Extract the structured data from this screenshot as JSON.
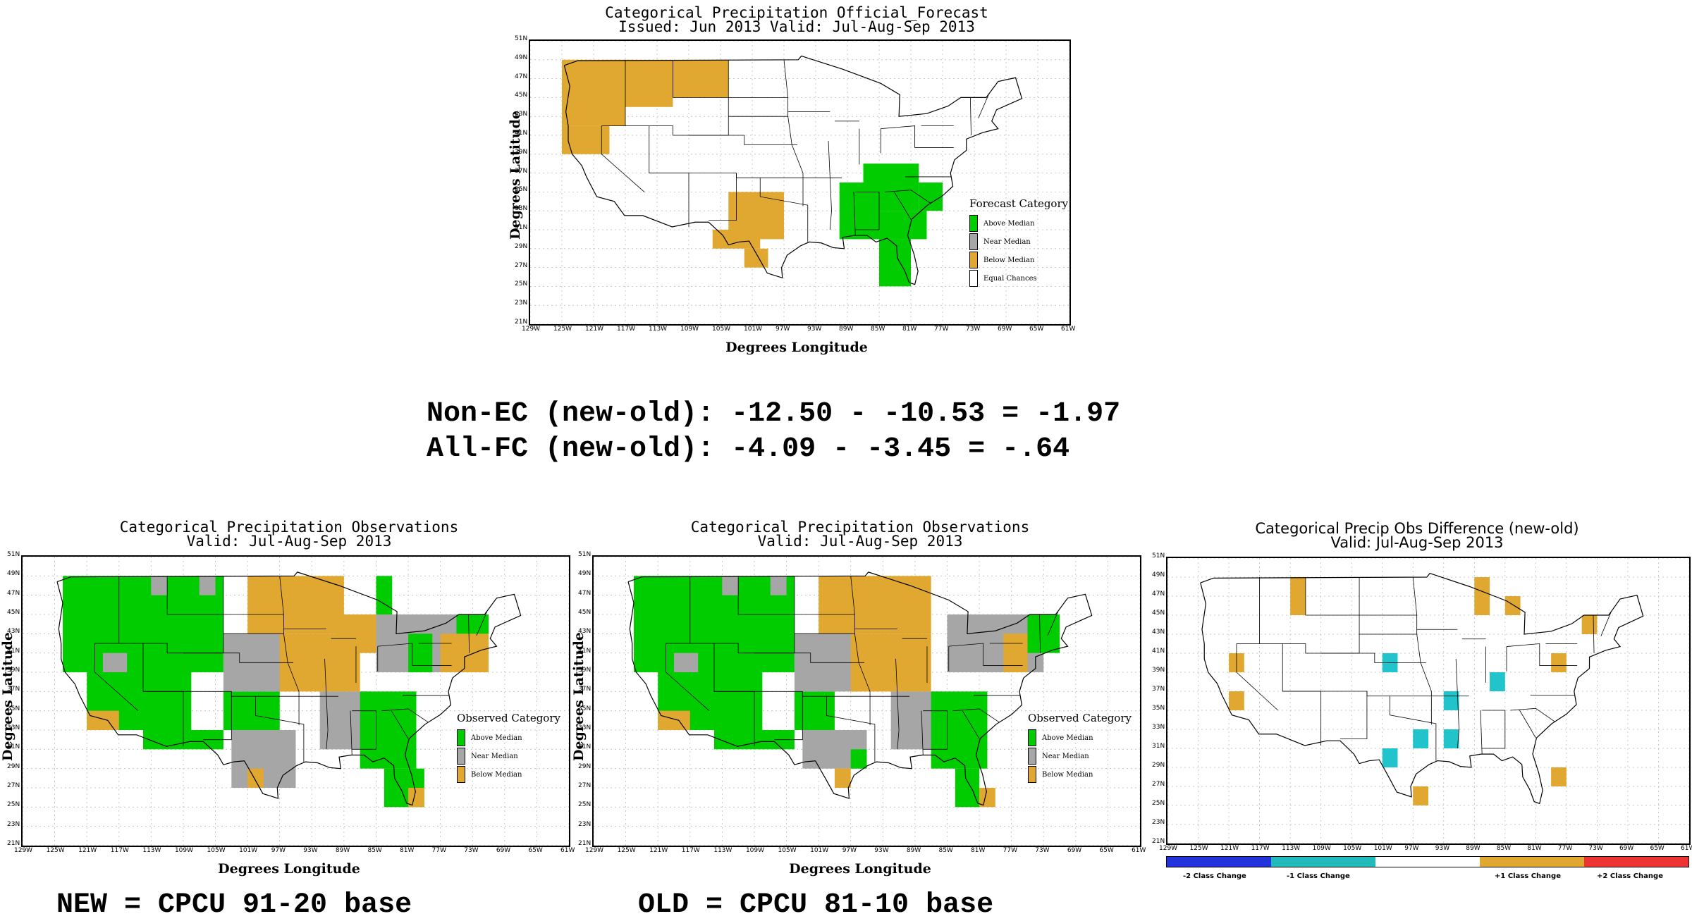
{
  "colors": {
    "above": "#00CC00",
    "near": "#A6A6A6",
    "below": "#E0A830",
    "equal": "#FFFFFF",
    "minus2": "#2233DD",
    "minus1": "#22BBBB",
    "plus1": "#E0A830",
    "plus2": "#EE3333",
    "cyan_cell": "#22C4CC"
  },
  "forecast": {
    "title_line1": "Categorical Precipitation Official_Forecast",
    "title_line2": "Issued: Jun 2013 Valid: Jul-Aug-Sep 2013",
    "ylabel": "Degrees Latitude",
    "xlabel": "Degrees Longitude",
    "legend_title": "Forecast Category",
    "legend": [
      "Above Median",
      "Near Median",
      "Below Median",
      "Equal Chances"
    ]
  },
  "stats": {
    "line1": "Non-EC (new-old): -12.50 - -10.53 = -1.97",
    "line2": "All-FC (new-old): -4.09 - -3.45 = -.64"
  },
  "obs_new": {
    "title_line1": "Categorical Precipitation Observations",
    "title_line2": "Valid: Jul-Aug-Sep 2013",
    "ylabel": "Degrees Latitude",
    "xlabel": "Degrees Longitude",
    "legend_title": "Observed Category",
    "legend": [
      "Above Median",
      "Near Median",
      "Below Median"
    ],
    "caption": "NEW = CPCU 91-20 base"
  },
  "obs_old": {
    "title_line1": "Categorical Precipitation Observations",
    "title_line2": "Valid: Jul-Aug-Sep 2013",
    "ylabel": "Degrees Latitude",
    "xlabel": "Degrees Longitude",
    "legend_title": "Observed Category",
    "legend": [
      "Above Median",
      "Near Median",
      "Below Median"
    ],
    "caption": "OLD = CPCU 81-10 base"
  },
  "diff": {
    "title_line1": "Categorical Precip Obs Difference (new-old)",
    "title_line2": "Valid: Jul-Aug-Sep 2013",
    "bar_labels": [
      "-2 Class Change",
      "-1 Class Change",
      "+1 Class Change",
      "+2 Class Change"
    ]
  },
  "axes": {
    "lat_ticks": [
      "51N",
      "49N",
      "47N",
      "45N",
      "43N",
      "41N",
      "39N",
      "37N",
      "35N",
      "33N",
      "31N",
      "29N",
      "27N",
      "25N",
      "23N",
      "21N"
    ],
    "lon_ticks": [
      "129W",
      "125W",
      "121W",
      "117W",
      "113W",
      "109W",
      "105W",
      "101W",
      "97W",
      "93W",
      "89W",
      "85W",
      "81W",
      "77W",
      "73W",
      "69W",
      "65W",
      "61W"
    ],
    "lat_range": [
      21,
      51
    ],
    "lon_range": [
      -129,
      -61
    ]
  },
  "map_grids": {
    "forecast": [
      {
        "cat": "below",
        "lon": [
          -125,
          -111
        ],
        "lat": [
          46,
          49
        ]
      },
      {
        "cat": "below",
        "lon": [
          -125,
          -117
        ],
        "lat": [
          42,
          46
        ]
      },
      {
        "cat": "below",
        "lon": [
          -125,
          -119
        ],
        "lat": [
          39,
          42
        ]
      },
      {
        "cat": "below",
        "lon": [
          -117,
          -111
        ],
        "lat": [
          44,
          46
        ]
      },
      {
        "cat": "below",
        "lon": [
          -111,
          -104
        ],
        "lat": [
          45,
          49
        ]
      },
      {
        "cat": "below",
        "lon": [
          -104,
          -97
        ],
        "lat": [
          30,
          35
        ]
      },
      {
        "cat": "below",
        "lon": [
          -106,
          -100
        ],
        "lat": [
          29,
          31
        ]
      },
      {
        "cat": "below",
        "lon": [
          -102,
          -99
        ],
        "lat": [
          27,
          29
        ]
      },
      {
        "cat": "above",
        "lon": [
          -87,
          -80
        ],
        "lat": [
          33,
          38
        ]
      },
      {
        "cat": "above",
        "lon": [
          -90,
          -85
        ],
        "lat": [
          30,
          36
        ]
      },
      {
        "cat": "above",
        "lon": [
          -85,
          -79
        ],
        "lat": [
          30,
          33
        ]
      },
      {
        "cat": "above",
        "lon": [
          -85,
          -81
        ],
        "lat": [
          25,
          30
        ]
      },
      {
        "cat": "above",
        "lon": [
          -80,
          -77
        ],
        "lat": [
          33,
          36
        ]
      }
    ],
    "obs_new": [
      {
        "cat": "above",
        "lon": [
          -124,
          -104
        ],
        "lat": [
          39,
          49
        ]
      },
      {
        "cat": "above",
        "lon": [
          -121,
          -108
        ],
        "lat": [
          33,
          39
        ]
      },
      {
        "cat": "above",
        "lon": [
          -114,
          -104
        ],
        "lat": [
          31,
          33
        ]
      },
      {
        "cat": "above",
        "lon": [
          -104,
          -97
        ],
        "lat": [
          33,
          37
        ]
      },
      {
        "cat": "near",
        "lon": [
          -104,
          -96
        ],
        "lat": [
          37,
          43
        ]
      },
      {
        "cat": "near",
        "lon": [
          -103,
          -95
        ],
        "lat": [
          27,
          33
        ]
      },
      {
        "cat": "near",
        "lon": [
          -119,
          -116
        ],
        "lat": [
          39,
          41
        ]
      },
      {
        "cat": "near",
        "lon": [
          -113,
          -111
        ],
        "lat": [
          47,
          49
        ]
      },
      {
        "cat": "near",
        "lon": [
          -107,
          -105
        ],
        "lat": [
          47,
          49
        ]
      },
      {
        "cat": "below",
        "lon": [
          -101,
          -89
        ],
        "lat": [
          43,
          49
        ]
      },
      {
        "cat": "below",
        "lon": [
          -97,
          -87
        ],
        "lat": [
          37,
          43
        ]
      },
      {
        "cat": "below",
        "lon": [
          -90,
          -85
        ],
        "lat": [
          41,
          45
        ]
      },
      {
        "cat": "near",
        "lon": [
          -92,
          -86
        ],
        "lat": [
          31,
          37
        ]
      },
      {
        "cat": "near",
        "lon": [
          -85,
          -73
        ],
        "lat": [
          39,
          45
        ]
      },
      {
        "cat": "above",
        "lon": [
          -87,
          -80
        ],
        "lat": [
          29,
          37
        ]
      },
      {
        "cat": "above",
        "lon": [
          -84,
          -79
        ],
        "lat": [
          25,
          29
        ]
      },
      {
        "cat": "above",
        "lon": [
          -85,
          -83
        ],
        "lat": [
          45,
          49
        ]
      },
      {
        "cat": "above",
        "lon": [
          -81,
          -78
        ],
        "lat": [
          39,
          43
        ]
      },
      {
        "cat": "above",
        "lon": [
          -75,
          -71
        ],
        "lat": [
          41,
          45
        ]
      },
      {
        "cat": "below",
        "lon": [
          -77,
          -71
        ],
        "lat": [
          39,
          43
        ]
      },
      {
        "cat": "below",
        "lon": [
          -121,
          -117
        ],
        "lat": [
          33,
          35
        ]
      },
      {
        "cat": "below",
        "lon": [
          -101,
          -99
        ],
        "lat": [
          27,
          29
        ]
      },
      {
        "cat": "below",
        "lon": [
          -81,
          -79
        ],
        "lat": [
          25,
          27
        ]
      }
    ],
    "obs_old": [
      {
        "cat": "above",
        "lon": [
          -124,
          -104
        ],
        "lat": [
          39,
          49
        ]
      },
      {
        "cat": "above",
        "lon": [
          -121,
          -108
        ],
        "lat": [
          33,
          39
        ]
      },
      {
        "cat": "above",
        "lon": [
          -114,
          -104
        ],
        "lat": [
          31,
          33
        ]
      },
      {
        "cat": "above",
        "lon": [
          -104,
          -99
        ],
        "lat": [
          33,
          37
        ]
      },
      {
        "cat": "near",
        "lon": [
          -104,
          -96
        ],
        "lat": [
          37,
          43
        ]
      },
      {
        "cat": "near",
        "lon": [
          -103,
          -95
        ],
        "lat": [
          29,
          33
        ]
      },
      {
        "cat": "near",
        "lon": [
          -119,
          -116
        ],
        "lat": [
          39,
          41
        ]
      },
      {
        "cat": "near",
        "lon": [
          -113,
          -111
        ],
        "lat": [
          47,
          49
        ]
      },
      {
        "cat": "near",
        "lon": [
          -107,
          -105
        ],
        "lat": [
          47,
          49
        ]
      },
      {
        "cat": "below",
        "lon": [
          -101,
          -87
        ],
        "lat": [
          43,
          49
        ]
      },
      {
        "cat": "below",
        "lon": [
          -97,
          -87
        ],
        "lat": [
          37,
          43
        ]
      },
      {
        "cat": "near",
        "lon": [
          -92,
          -86
        ],
        "lat": [
          31,
          37
        ]
      },
      {
        "cat": "near",
        "lon": [
          -85,
          -73
        ],
        "lat": [
          39,
          45
        ]
      },
      {
        "cat": "above",
        "lon": [
          -87,
          -80
        ],
        "lat": [
          29,
          37
        ]
      },
      {
        "cat": "above",
        "lon": [
          -84,
          -81
        ],
        "lat": [
          25,
          29
        ]
      },
      {
        "cat": "above",
        "lon": [
          -75,
          -71
        ],
        "lat": [
          41,
          45
        ]
      },
      {
        "cat": "above",
        "lon": [
          -97,
          -95
        ],
        "lat": [
          29,
          31
        ]
      },
      {
        "cat": "below",
        "lon": [
          -78,
          -75
        ],
        "lat": [
          39,
          43
        ]
      },
      {
        "cat": "below",
        "lon": [
          -121,
          -117
        ],
        "lat": [
          33,
          35
        ]
      },
      {
        "cat": "below",
        "lon": [
          -99,
          -97
        ],
        "lat": [
          27,
          29
        ]
      },
      {
        "cat": "below",
        "lon": [
          -81,
          -79
        ],
        "lat": [
          25,
          27
        ]
      }
    ],
    "diff": [
      {
        "cat": "plus1",
        "lon": [
          -113,
          -111
        ],
        "lat": [
          45,
          49
        ]
      },
      {
        "cat": "plus1",
        "lon": [
          -121,
          -119
        ],
        "lat": [
          39,
          41
        ]
      },
      {
        "cat": "plus1",
        "lon": [
          -121,
          -119
        ],
        "lat": [
          35,
          37
        ]
      },
      {
        "cat": "plus1",
        "lon": [
          -89,
          -87
        ],
        "lat": [
          45,
          49
        ]
      },
      {
        "cat": "plus1",
        "lon": [
          -85,
          -83
        ],
        "lat": [
          45,
          47
        ]
      },
      {
        "cat": "plus1",
        "lon": [
          -75,
          -73
        ],
        "lat": [
          43,
          45
        ]
      },
      {
        "cat": "plus1",
        "lon": [
          -79,
          -77
        ],
        "lat": [
          39,
          41
        ]
      },
      {
        "cat": "plus1",
        "lon": [
          -79,
          -77
        ],
        "lat": [
          27,
          29
        ]
      },
      {
        "cat": "plus1",
        "lon": [
          -97,
          -95
        ],
        "lat": [
          25,
          27
        ]
      },
      {
        "cat": "minus1",
        "lon": [
          -101,
          -99
        ],
        "lat": [
          39,
          41
        ]
      },
      {
        "cat": "minus1",
        "lon": [
          -93,
          -91
        ],
        "lat": [
          35,
          37
        ]
      },
      {
        "cat": "minus1",
        "lon": [
          -87,
          -85
        ],
        "lat": [
          37,
          39
        ]
      },
      {
        "cat": "minus1",
        "lon": [
          -97,
          -95
        ],
        "lat": [
          31,
          33
        ]
      },
      {
        "cat": "minus1",
        "lon": [
          -93,
          -91
        ],
        "lat": [
          31,
          33
        ]
      },
      {
        "cat": "minus1",
        "lon": [
          -101,
          -99
        ],
        "lat": [
          29,
          31
        ]
      }
    ]
  }
}
